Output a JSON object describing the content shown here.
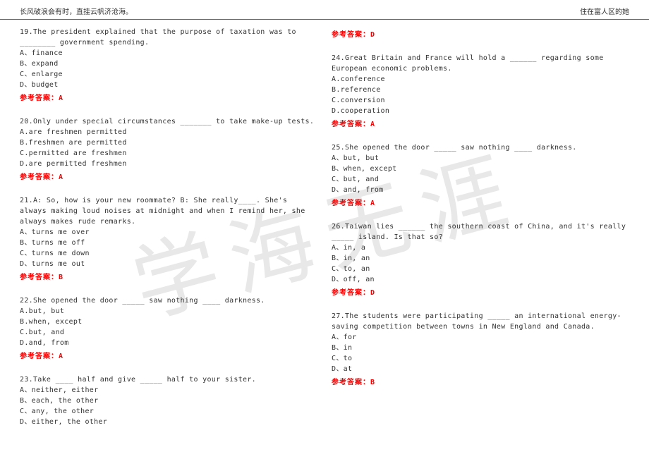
{
  "header": {
    "left": "长风破浪会有时，直挂云帆济沧海。",
    "right": "住在富人区的她"
  },
  "watermark": "学海无涯",
  "answer_prefix": "参考答案：",
  "left_col": [
    {
      "num": "19.",
      "text": "The president explained that the purpose of taxation was to ________ government spending.",
      "options": [
        "A、finance",
        "B、expand",
        "C、enlarge",
        "D、budget"
      ],
      "answer": "A"
    },
    {
      "num": "20.",
      "text": "Only under special circumstances _______ to take make-up tests.",
      "options": [
        "A.are freshmen permitted",
        "B.freshmen are permitted",
        "C.permitted are freshmen",
        "D.are permitted freshmen"
      ],
      "answer": "A"
    },
    {
      "num": "21.",
      "text": "A: So, how is your new roommate? B: She really____. She's always making loud noises at midnight and when I remind her, she always makes rude remarks.",
      "options": [
        "A、turns me over",
        "B、turns me off",
        "C、turns me down",
        "D、turns me out"
      ],
      "answer": "B"
    },
    {
      "num": "22.",
      "text": "She opened the door _____ saw nothing ____ darkness.",
      "options": [
        "A.but, but",
        "B.when, except",
        "C.but, and",
        "D.and, from"
      ],
      "answer": "A"
    },
    {
      "num": "23.",
      "text": "Take ____ half and give _____ half to your sister.",
      "options": [
        "A、neither, either",
        "B、each, the other",
        "C、any, the other",
        "D、either, the other"
      ],
      "answer": ""
    }
  ],
  "right_col": [
    {
      "num": "",
      "text": "",
      "options": [],
      "answer": "D"
    },
    {
      "num": "24.",
      "text": "Great Britain and France will hold a ______ regarding some European economic problems.",
      "options": [
        "A.conference",
        "B.reference",
        "C.conversion",
        "D.cooperation"
      ],
      "answer": "A"
    },
    {
      "num": "25.",
      "text": "She opened the door _____ saw nothing ____ darkness.",
      "options": [
        "A、but, but",
        "B、when, except",
        "C、but, and",
        "D、and, from"
      ],
      "answer": "A"
    },
    {
      "num": "26.",
      "text": "Taiwan lies ______ the southern coast of China, and it's really _____ island. Is that so?",
      "options": [
        "A、in, a",
        "B、in, an",
        "C、to, an",
        "D、off, an"
      ],
      "answer": "D"
    },
    {
      "num": "27.",
      "text": "The students were participating _____ an international energy-saving competition between towns in New England and Canada.",
      "options": [
        "A、for",
        "B、in",
        "C、to",
        "D、at"
      ],
      "answer": "B"
    }
  ]
}
